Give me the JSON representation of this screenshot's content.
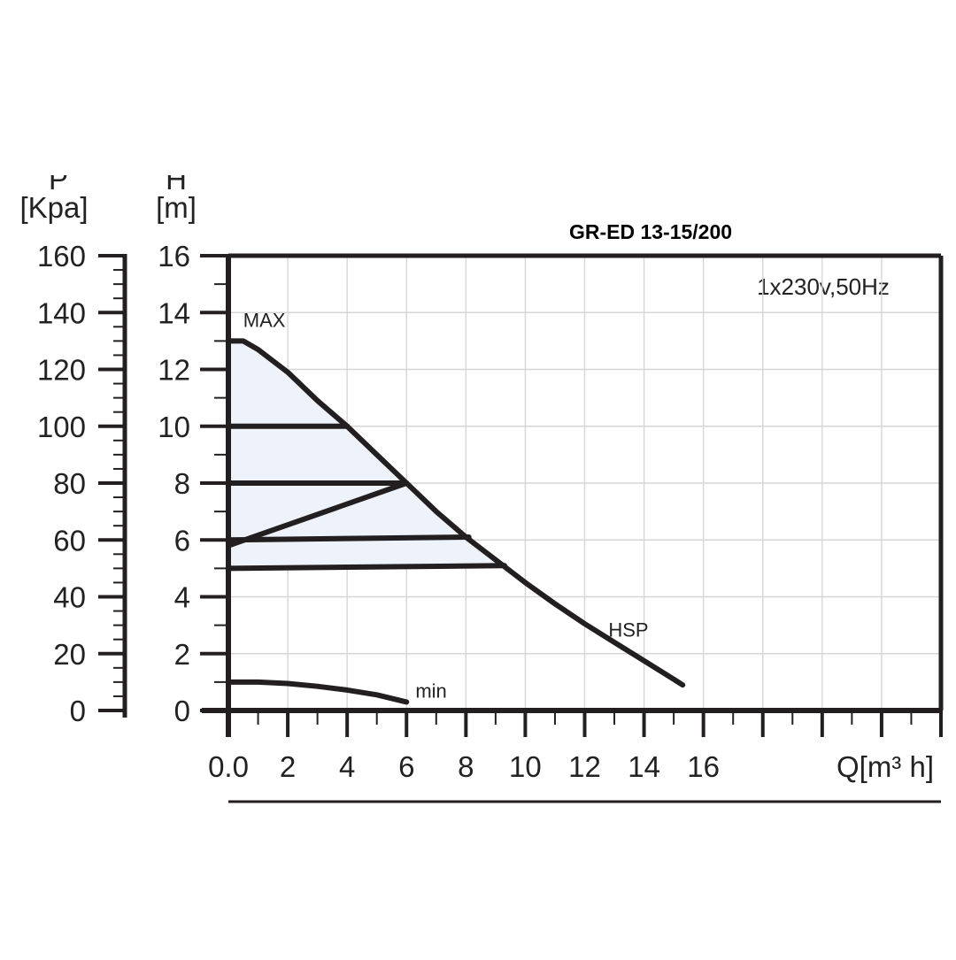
{
  "chart_data": {
    "type": "line",
    "title": "GR-ED 13-15/200",
    "annotation": "1x230v,50Hz",
    "left_axis": {
      "letter": "P",
      "unit": "[Kpa]",
      "ticks": [
        "160",
        "140",
        "120",
        "100",
        "80",
        "60",
        "40",
        "20",
        "0"
      ]
    },
    "y_axis": {
      "letter": "H",
      "unit": "[m]",
      "ticks": [
        "16",
        "14",
        "12",
        "10",
        "8",
        "6",
        "4",
        "2",
        "0"
      ],
      "ylim": [
        0,
        16
      ]
    },
    "x_axis": {
      "label": "Q[m³  h]",
      "ticks": [
        "0.0",
        "2",
        "4",
        "6",
        "8",
        "10",
        "12",
        "14",
        "16"
      ],
      "xlim": [
        0,
        24
      ]
    },
    "grid": true,
    "series": [
      {
        "name": "MAX",
        "points": [
          [
            0,
            13
          ],
          [
            0.5,
            13
          ],
          [
            1,
            12.7
          ],
          [
            2,
            11.9
          ],
          [
            3,
            10.9
          ],
          [
            4,
            10
          ],
          [
            5,
            9
          ],
          [
            6,
            8
          ],
          [
            7,
            7
          ],
          [
            8,
            6.1
          ],
          [
            8.5,
            5.7
          ],
          [
            9,
            5.3
          ]
        ]
      },
      {
        "name": "HSP",
        "points": [
          [
            9,
            5.3
          ],
          [
            10,
            4.5
          ],
          [
            11,
            3.75
          ],
          [
            12,
            3.05
          ],
          [
            13,
            2.4
          ],
          [
            14,
            1.75
          ],
          [
            15,
            1.1
          ],
          [
            15.3,
            0.9
          ]
        ]
      },
      {
        "name": "min",
        "points": [
          [
            0,
            1
          ],
          [
            1,
            1
          ],
          [
            2,
            0.95
          ],
          [
            3,
            0.85
          ],
          [
            4,
            0.72
          ],
          [
            5,
            0.55
          ],
          [
            6,
            0.3
          ]
        ]
      }
    ],
    "operating_lines": [
      [
        [
          0,
          10
        ],
        [
          4,
          10
        ]
      ],
      [
        [
          0,
          8
        ],
        [
          6,
          8
        ]
      ],
      [
        [
          0,
          5.8
        ],
        [
          6,
          8
        ]
      ],
      [
        [
          0,
          6
        ],
        [
          8.1,
          6.1
        ]
      ],
      [
        [
          0,
          5
        ],
        [
          9.3,
          5.1
        ]
      ]
    ]
  }
}
